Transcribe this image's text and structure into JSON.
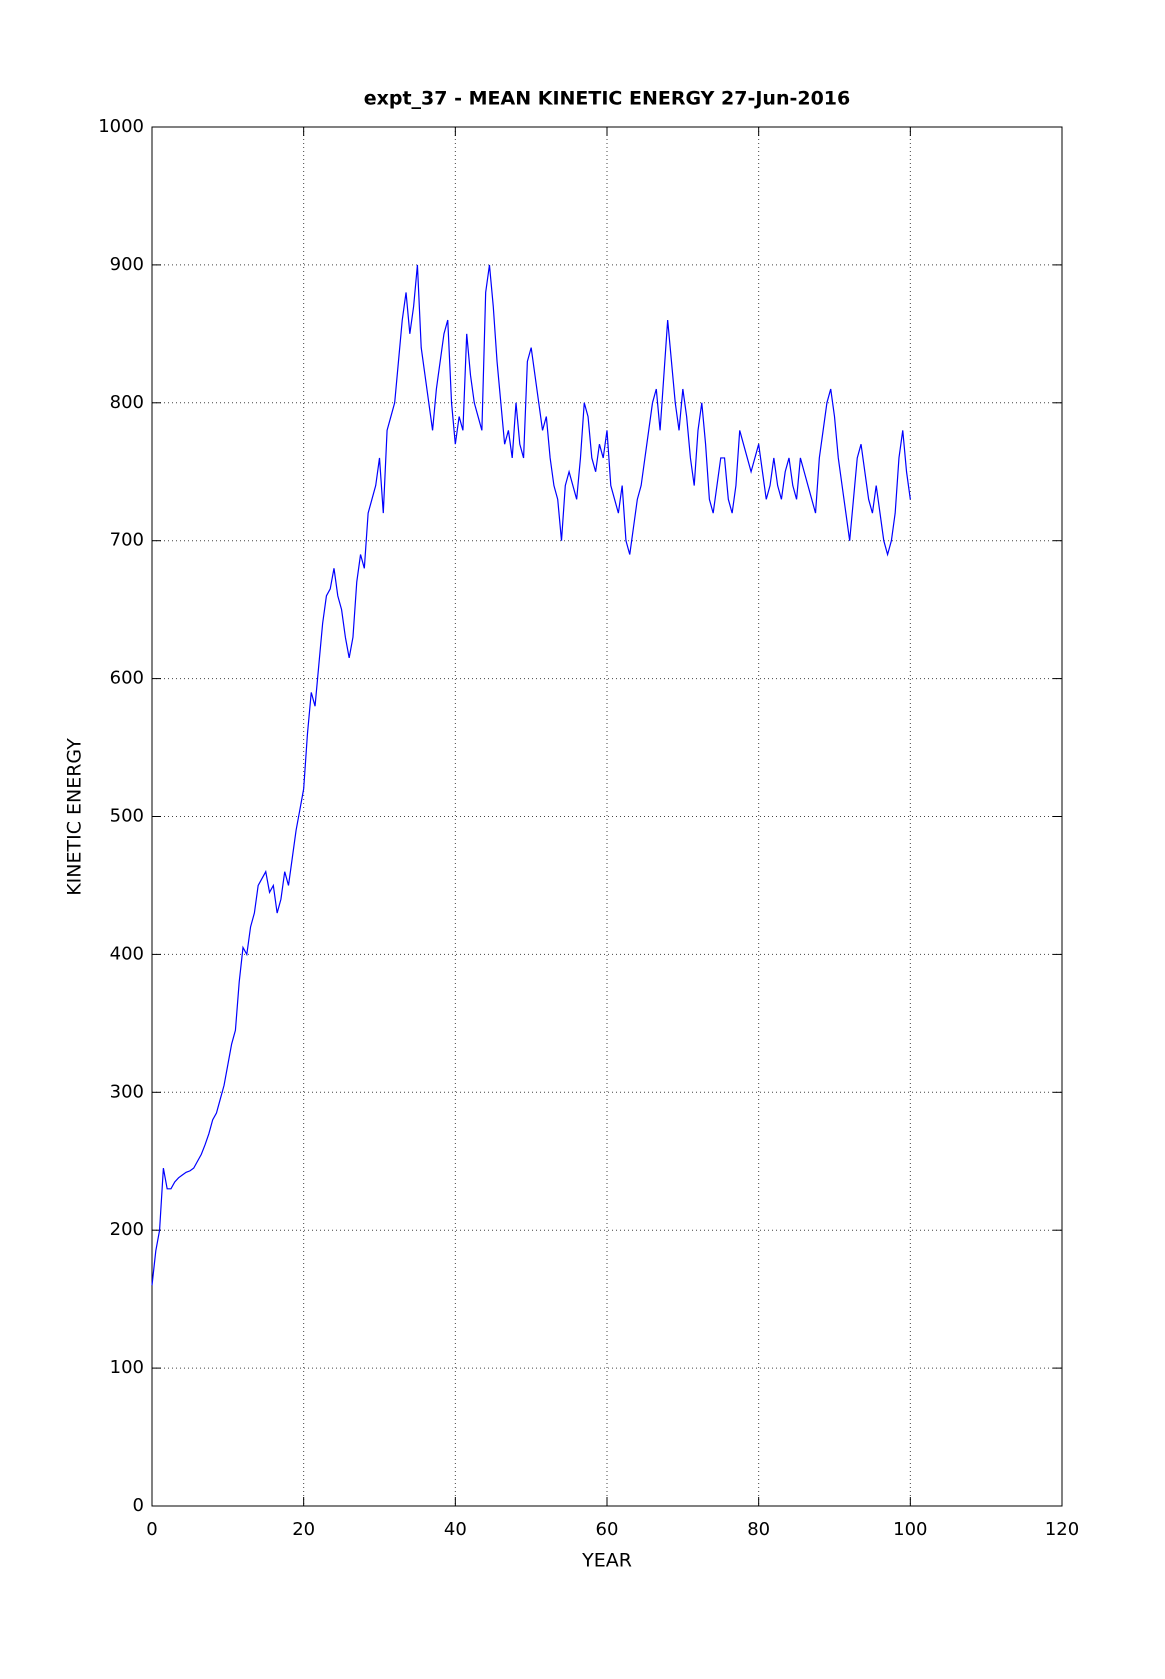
{
  "chart_data": {
    "type": "line",
    "title": "expt_37 - MEAN KINETIC ENERGY 27-Jun-2016",
    "x_label": "YEAR",
    "y_label": "KINETIC ENERGY",
    "xlim": [
      0,
      120
    ],
    "xticks": [
      0,
      20,
      40,
      60,
      80,
      100,
      120
    ],
    "ylim": [
      0,
      1000
    ],
    "yticks": [
      0,
      100,
      200,
      300,
      400,
      500,
      600,
      700,
      800,
      900,
      1000
    ],
    "grid": true,
    "series": [
      {
        "color": "#0000ff",
        "x": [
          0,
          0.5,
          1,
          1.5,
          2,
          2.5,
          3,
          3.5,
          4,
          4.5,
          5,
          5.5,
          6,
          6.5,
          7,
          7.5,
          8,
          8.5,
          9,
          9.5,
          10,
          10.5,
          11,
          11.5,
          12,
          12.5,
          13,
          13.5,
          14,
          14.5,
          15,
          15.5,
          16,
          16.5,
          17,
          17.5,
          18,
          18.5,
          19,
          19.5,
          20,
          20.5,
          21,
          21.5,
          22,
          22.5,
          23,
          23.5,
          24,
          24.5,
          25,
          25.5,
          26,
          26.5,
          27,
          27.5,
          28,
          28.5,
          29,
          29.5,
          30,
          30.5,
          31,
          31.5,
          32,
          32.5,
          33,
          33.5,
          34,
          34.5,
          35,
          35.5,
          36,
          36.5,
          37,
          37.5,
          38,
          38.5,
          39,
          39.5,
          40,
          40.5,
          41,
          41.5,
          42,
          42.5,
          43,
          43.5,
          44,
          44.5,
          45,
          45.5,
          46,
          46.5,
          47,
          47.5,
          48,
          48.5,
          49,
          49.5,
          50,
          50.5,
          51,
          51.5,
          52,
          52.5,
          53,
          53.5,
          54,
          54.5,
          55,
          55.5,
          56,
          56.5,
          57,
          57.5,
          58,
          58.5,
          59,
          59.5,
          60,
          60.5,
          61,
          61.5,
          62,
          62.5,
          63,
          63.5,
          64,
          64.5,
          65,
          65.5,
          66,
          66.5,
          67,
          67.5,
          68,
          68.5,
          69,
          69.5,
          70,
          70.5,
          71,
          71.5,
          72,
          72.5,
          73,
          73.5,
          74,
          74.5,
          75,
          75.5,
          76,
          76.5,
          77,
          77.5,
          78,
          78.5,
          79,
          79.5,
          80,
          80.5,
          81,
          81.5,
          82,
          82.5,
          83,
          83.5,
          84,
          84.5,
          85,
          85.5,
          86,
          86.5,
          87,
          87.5,
          88,
          88.5,
          89,
          89.5,
          90,
          90.5,
          91,
          91.5,
          92,
          92.5,
          93,
          93.5,
          94,
          94.5,
          95,
          95.5,
          96,
          96.5,
          97,
          97.5,
          98,
          98.5,
          99,
          99.5,
          100
        ],
        "values": [
          160,
          185,
          200,
          245,
          230,
          230,
          235,
          238,
          240,
          242,
          243,
          245,
          250,
          255,
          262,
          270,
          280,
          285,
          295,
          305,
          320,
          335,
          345,
          380,
          405,
          400,
          420,
          430,
          450,
          455,
          460,
          445,
          450,
          430,
          440,
          460,
          450,
          470,
          490,
          505,
          520,
          560,
          590,
          580,
          610,
          640,
          660,
          665,
          680,
          660,
          650,
          630,
          615,
          630,
          670,
          690,
          680,
          720,
          730,
          740,
          760,
          720,
          780,
          790,
          800,
          830,
          860,
          880,
          850,
          870,
          900,
          840,
          820,
          800,
          780,
          810,
          830,
          850,
          860,
          800,
          770,
          790,
          780,
          850,
          820,
          800,
          790,
          780,
          880,
          900,
          870,
          830,
          800,
          770,
          780,
          760,
          800,
          770,
          760,
          830,
          840,
          820,
          800,
          780,
          790,
          760,
          740,
          730,
          700,
          740,
          750,
          740,
          730,
          760,
          800,
          790,
          760,
          750,
          770,
          760,
          780,
          740,
          730,
          720,
          740,
          700,
          690,
          710,
          730,
          740,
          760,
          780,
          800,
          810,
          780,
          820,
          860,
          830,
          800,
          780,
          810,
          790,
          760,
          740,
          780,
          800,
          770,
          730,
          720,
          740,
          760,
          760,
          730,
          720,
          740,
          780,
          770,
          760,
          750,
          760,
          770,
          750,
          730,
          740,
          760,
          740,
          730,
          750,
          760,
          740,
          730,
          760,
          750,
          740,
          730,
          720,
          760,
          780,
          800,
          810,
          790,
          760,
          740,
          720,
          700,
          730,
          760,
          770,
          750,
          730,
          720,
          740,
          720,
          700,
          690,
          700,
          720,
          760,
          780,
          750,
          730
        ]
      }
    ]
  }
}
